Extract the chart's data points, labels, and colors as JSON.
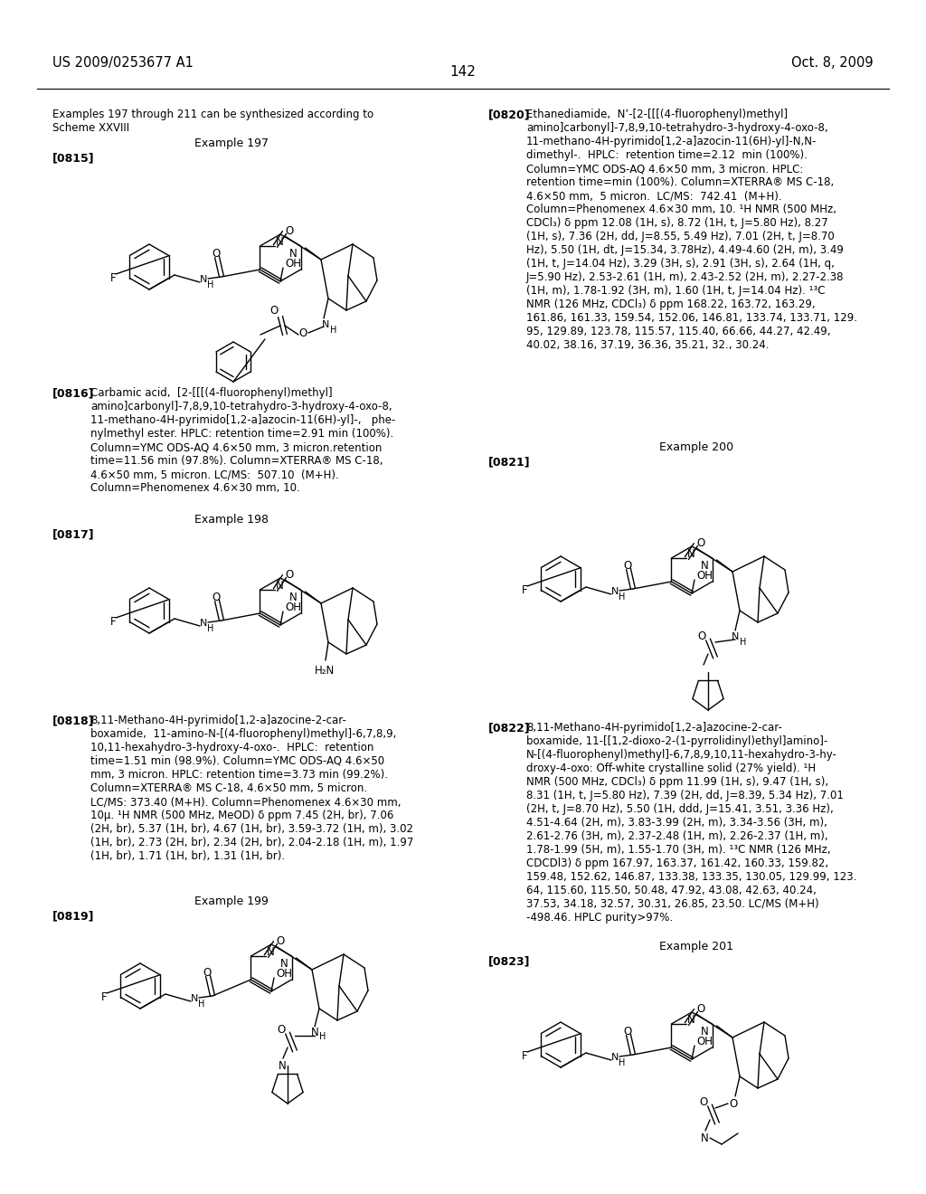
{
  "background_color": "#ffffff",
  "header_left": "US 2009/0253677 A1",
  "header_right": "Oct. 8, 2009",
  "page_number": "142",
  "intro_text1": "Examples 197 through 211 can be synthesized according to",
  "intro_text2": "Scheme XXVIII",
  "ex197_title": "Example 197",
  "p815": "[0815]",
  "p816_label": "[0816]",
  "p816_body": "Carbamic acid,  [2-[[[(4-fluorophenyl)methyl]\namino]carbonyl]-7,8,9,10-tetrahydro-3-hydroxy-4-oxo-8,\n11-methano-4H-pyrimido[1,2-a]azocin-11(6H)-yl]-,   phe-\nnylmethyl ester. HPLC: retention time=2.91 min (100%).\nColumn=YMC ODS-AQ 4.6×50 mm, 3 micron.retention\ntime=11.56 min (97.8%). Column=XTERRA® MS C-18,\n4.6×50 mm, 5 micron. LC/MS:  507.10  (M+H).\nColumn=Phenomenex 4.6×30 mm, 10.",
  "ex198_title": "Example 198",
  "p817": "[0817]",
  "p818_label": "[0818]",
  "p818_body": "8,11-Methano-4H-pyrimido[1,2-a]azocine-2-car-\nboxamide,  11-amino-N-[(4-fluorophenyl)methyl]-6,7,8,9,\n10,11-hexahydro-3-hydroxy-4-oxo-.  HPLC:  retention\ntime=1.51 min (98.9%). Column=YMC ODS-AQ 4.6×50\nmm, 3 micron. HPLC: retention time=3.73 min (99.2%).\nColumn=XTERRA® MS C-18, 4.6×50 mm, 5 micron.\nLC/MS: 373.40 (M+H). Column=Phenomenex 4.6×30 mm,\n10μ. ¹H NMR (500 MHz, MeOD) δ ppm 7.45 (2H, br), 7.06\n(2H, br), 5.37 (1H, br), 4.67 (1H, br), 3.59-3.72 (1H, m), 3.02\n(1H, br), 2.73 (2H, br), 2.34 (2H, br), 2.04-2.18 (1H, m), 1.97\n(1H, br), 1.71 (1H, br), 1.31 (1H, br).",
  "ex199_title": "Example 199",
  "p819": "[0819]",
  "p820_label": "[0820]",
  "p820_body": "Ethanediamide,  N’-[2-[[[(4-fluorophenyl)methyl]\namino]carbonyl]-7,8,9,10-tetrahydro-3-hydroxy-4-oxo-8,\n11-methano-4H-pyrimido[1,2-a]azocin-11(6H)-yl]-N,N-\ndimethyl-.  HPLC:  retention time=2.12  min (100%).\nColumn=YMC ODS-AQ 4.6×50 mm, 3 micron. HPLC:\nretention time=min (100%). Column=XTERRA® MS C-18,\n4.6×50 mm,  5 micron.  LC/MS:  742.41  (M+H).\nColumn=Phenomenex 4.6×30 mm, 10. ¹H NMR (500 MHz,\nCDCl₃) δ ppm 12.08 (1H, s), 8.72 (1H, t, J=5.80 Hz), 8.27\n(1H, s), 7.36 (2H, dd, J=8.55, 5.49 Hz), 7.01 (2H, t, J=8.70\nHz), 5.50 (1H, dt, J=15.34, 3.78Hz), 4.49-4.60 (2H, m), 3.49\n(1H, t, J=14.04 Hz), 3.29 (3H, s), 2.91 (3H, s), 2.64 (1H, q,\nJ=5.90 Hz), 2.53-2.61 (1H, m), 2.43-2.52 (2H, m), 2.27-2.38\n(1H, m), 1.78-1.92 (3H, m), 1.60 (1H, t, J=14.04 Hz). ¹³C\nNMR (126 MHz, CDCl₃) δ ppm 168.22, 163.72, 163.29,\n161.86, 161.33, 159.54, 152.06, 146.81, 133.74, 133.71, 129.\n95, 129.89, 123.78, 115.57, 115.40, 66.66, 44.27, 42.49,\n40.02, 38.16, 37.19, 36.36, 35.21, 32., 30.24.",
  "ex200_title": "Example 200",
  "p821": "[0821]",
  "p822_label": "[0822]",
  "p822_body": "8,11-Methano-4H-pyrimido[1,2-a]azocine-2-car-\nboxamide, 11-[[1,2-dioxo-2-(1-pyrrolidinyl)ethyl]amino]-\nN-[(4-fluorophenyl)methyl]-6,7,8,9,10,11-hexahydro-3-hy-\ndroxy-4-oxo: Off-white crystalline solid (27% yield). ¹H\nNMR (500 MHz, CDCl₃) δ ppm 11.99 (1H, s), 9.47 (1H, s),\n8.31 (1H, t, J=5.80 Hz), 7.39 (2H, dd, J=8.39, 5.34 Hz), 7.01\n(2H, t, J=8.70 Hz), 5.50 (1H, ddd, J=15.41, 3.51, 3.36 Hz),\n4.51-4.64 (2H, m), 3.83-3.99 (2H, m), 3.34-3.56 (3H, m),\n2.61-2.76 (3H, m), 2.37-2.48 (1H, m), 2.26-2.37 (1H, m),\n1.78-1.99 (5H, m), 1.55-1.70 (3H, m). ¹³C NMR (126 MHz,\nCDCDl3) δ ppm 167.97, 163.37, 161.42, 160.33, 159.82,\n159.48, 152.62, 146.87, 133.38, 133.35, 130.05, 129.99, 123.\n64, 115.60, 115.50, 50.48, 47.92, 43.08, 42.63, 40.24,\n37.53, 34.18, 32.57, 30.31, 26.85, 23.50. LC/MS (M+H)\n-498.46. HPLC purity>97%.",
  "ex201_title": "Example 201",
  "p823": "[0823]"
}
